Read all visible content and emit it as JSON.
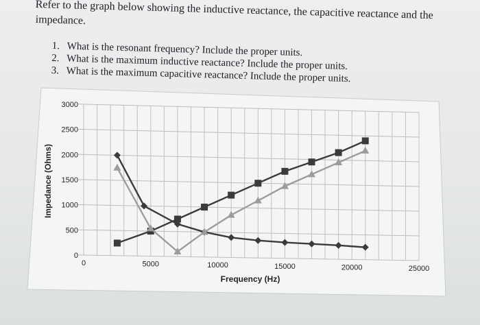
{
  "intro": {
    "line1": "Refer to the graph below showing the inductive reactance, the capacitive reactance and the",
    "line2": "impedance."
  },
  "questions": [
    {
      "num": "1.",
      "text": "What is the resonant frequency? Include the proper units."
    },
    {
      "num": "2.",
      "text": "What is the maximum inductive reactance? Include the proper units."
    },
    {
      "num": "3.",
      "text": "What is the maximum capacitive reactance? Include the proper units."
    }
  ],
  "chart_data": {
    "type": "line",
    "xlabel": "Frequency (Hz)",
    "ylabel": "Impedance (Ohms)",
    "xlim": [
      0,
      25000
    ],
    "ylim": [
      0,
      3000
    ],
    "x_ticks": [
      0,
      5000,
      10000,
      15000,
      20000,
      25000
    ],
    "y_ticks": [
      0,
      500,
      1000,
      1500,
      2000,
      2500,
      3000
    ],
    "grid": true,
    "series": [
      {
        "color": "#3a3b3d",
        "marker": "square",
        "x": [
          2500,
          5000,
          7000,
          9000,
          11000,
          13000,
          15000,
          17000,
          19000,
          21000
        ],
        "y": [
          250,
          500,
          750,
          1000,
          1250,
          1500,
          1750,
          1950,
          2150,
          2400
        ]
      },
      {
        "color": "#3a3b3d",
        "marker": "diamond",
        "x": [
          2500,
          4500,
          7000,
          9000,
          11000,
          13000,
          15000,
          17000,
          19000,
          21000
        ],
        "y": [
          2000,
          1000,
          650,
          500,
          400,
          350,
          320,
          300,
          280,
          250
        ]
      },
      {
        "color": "#9a9c9e",
        "marker": "triangle",
        "x": [
          2500,
          5000,
          7000,
          9000,
          11000,
          13000,
          15000,
          17000,
          19000,
          21000
        ],
        "y": [
          1750,
          550,
          100,
          500,
          850,
          1150,
          1450,
          1700,
          1950,
          2200
        ]
      }
    ]
  }
}
